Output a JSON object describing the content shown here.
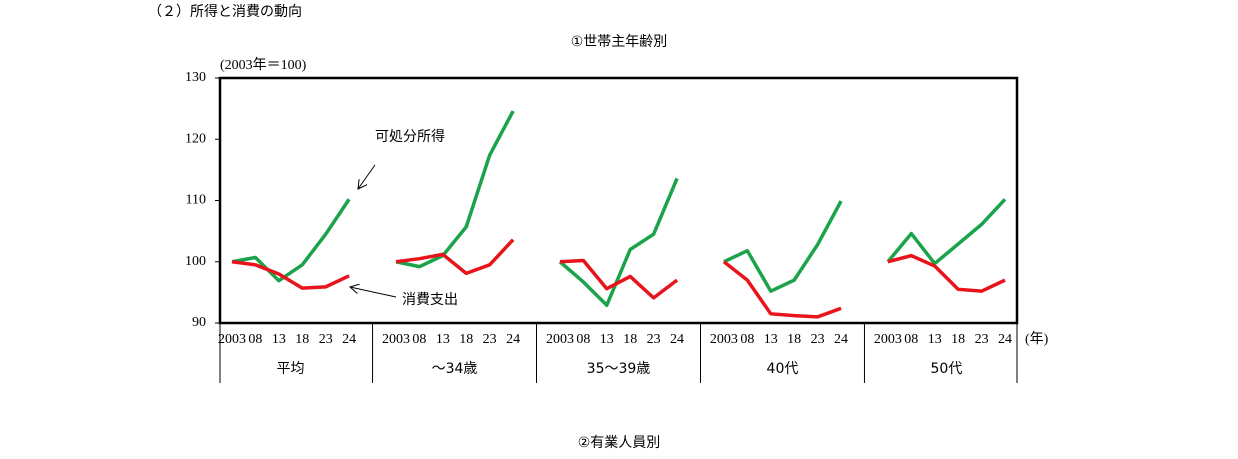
{
  "header": "（２）所得と消費の動向",
  "chart_data": {
    "type": "line",
    "title": "①世帯主年齢別",
    "ylabel": "(2003年＝100)",
    "xlabel": "(年)",
    "ylim": [
      90,
      130
    ],
    "yticks": [
      90,
      100,
      110,
      120,
      130
    ],
    "categories": [
      "2003",
      "08",
      "13",
      "18",
      "23",
      "24",
      null,
      "2003",
      "08",
      "13",
      "18",
      "23",
      "24",
      null,
      "2003",
      "08",
      "13",
      "18",
      "23",
      "24",
      null,
      "2003",
      "08",
      "13",
      "18",
      "23",
      "24",
      null,
      "2003",
      "08",
      "13",
      "18",
      "23",
      "24"
    ],
    "groups": [
      "平均",
      "～34歳",
      "35～39歳",
      "40代",
      "50代"
    ],
    "series": [
      {
        "name": "可処分所得",
        "color": "#1aa34a",
        "values": [
          100,
          100.7,
          96.9,
          99.5,
          104.5,
          110.2,
          null,
          100,
          99.2,
          101.0,
          105.7,
          117.4,
          124.6,
          null,
          100,
          96.7,
          92.9,
          102.0,
          104.5,
          113.6,
          null,
          100,
          101.8,
          95.2,
          97.0,
          102.8,
          109.9,
          null,
          100,
          104.6,
          99.7,
          102.9,
          106.1,
          110.2
        ]
      },
      {
        "name": "消費支出",
        "color": "#e8141c",
        "values": [
          100,
          99.5,
          98.0,
          95.7,
          95.9,
          97.7,
          null,
          100,
          100.5,
          101.2,
          98.1,
          99.5,
          103.6,
          null,
          100,
          100.2,
          95.6,
          97.6,
          94.1,
          97.0,
          null,
          100,
          97.0,
          91.5,
          91.2,
          91.0,
          92.4,
          null,
          100,
          101.0,
          99.3,
          95.5,
          95.2,
          97.0
        ]
      }
    ]
  },
  "footer": "②有業人員別"
}
